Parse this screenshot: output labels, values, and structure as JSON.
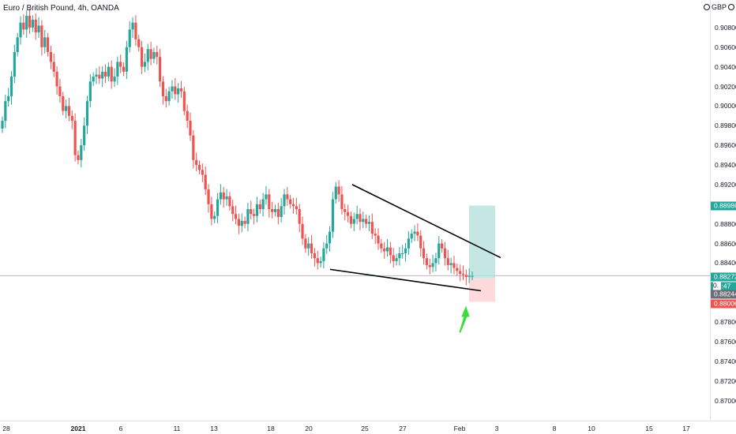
{
  "header": {
    "title": "Euro / British Pound, 4h, OANDA",
    "currency": "GBP"
  },
  "colors": {
    "up": "#26a69a",
    "down": "#ef5350",
    "line": "#000000",
    "arrow": "#3ddc3d",
    "target_zone": "#b2dfdb",
    "stop_zone": "#ffcdd2",
    "current_line": "#26a69a"
  },
  "price_labels": {
    "target": "0.88986",
    "current": "0.88272",
    "countdown": "04:47",
    "entry": "0.88244",
    "stop": "0.88006",
    "partial": "0."
  },
  "chart_data": {
    "type": "candlestick",
    "title": "Euro / British Pound, 4h, OANDA",
    "y_axis": {
      "min": 0.869,
      "max": 0.91,
      "ticks": [
        "0.90800",
        "0.90600",
        "0.90400",
        "0.90200",
        "0.90000",
        "0.89800",
        "0.89600",
        "0.89400",
        "0.89200",
        "0.88800",
        "0.88600",
        "0.88400",
        "0.88000",
        "0.87800",
        "0.87600",
        "0.87400",
        "0.87200",
        "0.87000"
      ]
    },
    "x_axis": {
      "ticks": [
        "28",
        "2021",
        "6",
        "11",
        "13",
        "18",
        "20",
        "25",
        "27",
        "Feb",
        "3",
        "8",
        "10",
        "15",
        "17"
      ]
    },
    "candles_close": [
      0.8985,
      0.9005,
      0.901,
      0.903,
      0.9055,
      0.907,
      0.9085,
      0.9078,
      0.9092,
      0.908,
      0.9088,
      0.9075,
      0.9082,
      0.906,
      0.907,
      0.9055,
      0.9045,
      0.9035,
      0.902,
      0.901,
      0.8995,
      0.9,
      0.899,
      0.8985,
      0.895,
      0.8945,
      0.896,
      0.898,
      0.9005,
      0.9025,
      0.903,
      0.9032,
      0.9028,
      0.9035,
      0.903,
      0.904,
      0.9025,
      0.903,
      0.9045,
      0.904,
      0.9035,
      0.906,
      0.9078,
      0.9085,
      0.9068,
      0.906,
      0.904,
      0.9045,
      0.9058,
      0.9048,
      0.9055,
      0.905,
      0.9025,
      0.901,
      0.9005,
      0.9015,
      0.902,
      0.9012,
      0.9018,
      0.9015,
      0.8995,
      0.8985,
      0.897,
      0.8945,
      0.894,
      0.8935,
      0.893,
      0.8915,
      0.89,
      0.8885,
      0.8888,
      0.8905,
      0.8912,
      0.8905,
      0.8908,
      0.8898,
      0.889,
      0.8885,
      0.8878,
      0.8883,
      0.888,
      0.8895,
      0.889,
      0.8888,
      0.89,
      0.8895,
      0.8905,
      0.891,
      0.8895,
      0.8892,
      0.8895,
      0.8887,
      0.8898,
      0.891,
      0.8905,
      0.89,
      0.8898,
      0.8895,
      0.888,
      0.8865,
      0.8855,
      0.886,
      0.885,
      0.8845,
      0.884,
      0.8842,
      0.8855,
      0.886,
      0.8872,
      0.8905,
      0.8918,
      0.891,
      0.8895,
      0.8892,
      0.8888,
      0.888,
      0.8885,
      0.889,
      0.8882,
      0.8885,
      0.888,
      0.8882,
      0.887,
      0.8868,
      0.886,
      0.8855,
      0.8852,
      0.8856,
      0.8848,
      0.8842,
      0.8845,
      0.885,
      0.885,
      0.8855,
      0.8865,
      0.887,
      0.8872,
      0.8868,
      0.8855,
      0.8845,
      0.8838,
      0.8836,
      0.884,
      0.8845,
      0.886,
      0.8855,
      0.8845,
      0.8838,
      0.884,
      0.8835,
      0.8832,
      0.8829,
      0.8828,
      0.8826,
      0.8827,
      0.8827
    ],
    "annotations": {
      "upper_trendline": "line from 0.8920 near 23 Jan sloping down to 0.8846 past Feb",
      "lower_trendline": "line from 0.8834 near 21 Jan sloping down to 0.8812 near 3 Feb",
      "long_position": {
        "entry": 0.88244,
        "target": 0.88986,
        "stop": 0.88006
      },
      "arrow": "up"
    }
  }
}
